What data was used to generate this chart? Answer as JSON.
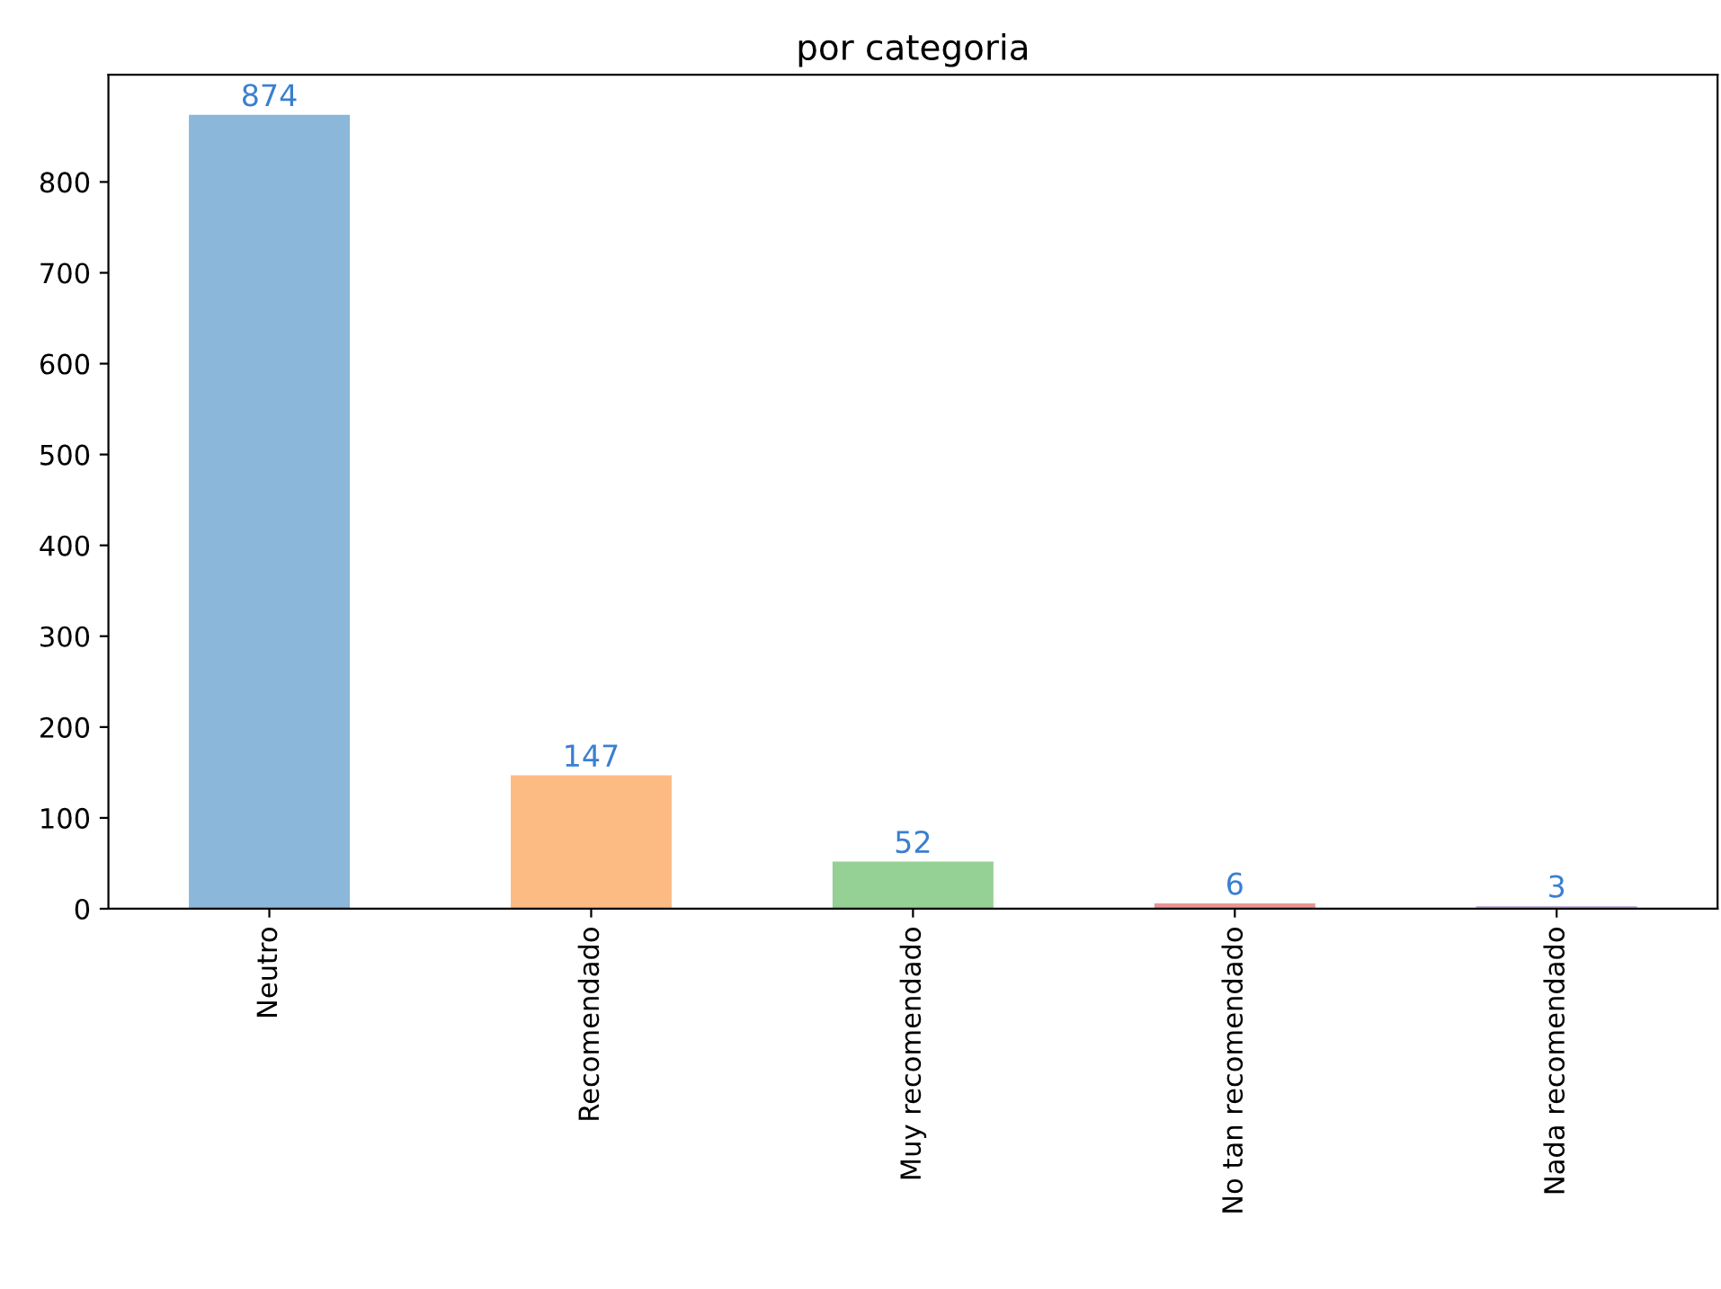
{
  "chart_data": {
    "type": "bar",
    "title": "por categoria",
    "categories": [
      "Neutro",
      "Recomendado",
      "Muy recomendado",
      "No tan recomendado",
      "Nada recomendado"
    ],
    "values": [
      874,
      147,
      52,
      6,
      3
    ],
    "colors": [
      "#8bb8da",
      "#fdbb84",
      "#95d095",
      "#e99595",
      "#c6b3dc"
    ],
    "ylim": [
      0,
      918
    ],
    "yticks": [
      0,
      100,
      200,
      300,
      400,
      500,
      600,
      700,
      800
    ],
    "data_labels": true,
    "grid": false,
    "legend": false
  }
}
